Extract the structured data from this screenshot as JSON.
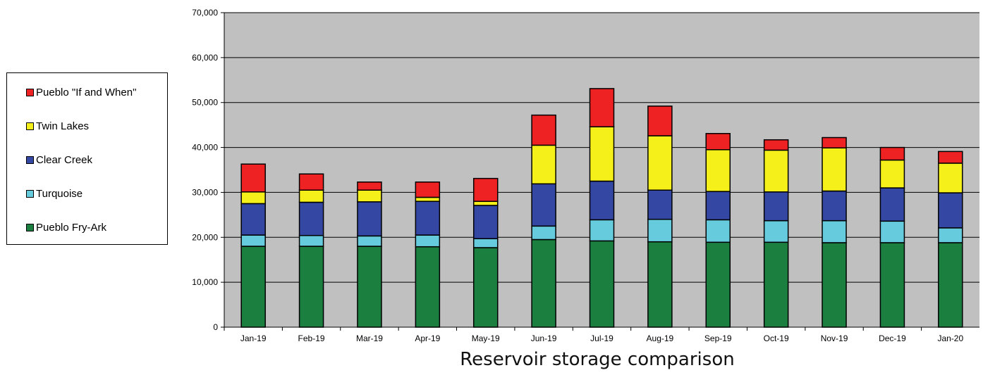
{
  "caption": "Reservoir storage comparison",
  "chart_data": {
    "type": "bar",
    "stacked": true,
    "categories": [
      "Jan-19",
      "Feb-19",
      "Mar-19",
      "Apr-19",
      "May-19",
      "Jun-19",
      "Jul-19",
      "Aug-19",
      "Sep-19",
      "Oct-19",
      "Nov-19",
      "Dec-19",
      "Jan-20"
    ],
    "ylim": [
      0,
      70000
    ],
    "yticks": [
      0,
      10000,
      20000,
      30000,
      40000,
      50000,
      60000,
      70000
    ],
    "ytick_labels": [
      "0",
      "10,000",
      "20,000",
      "30,000",
      "40,000",
      "50,000",
      "60,000",
      "70,000"
    ],
    "grid": true,
    "plot_background": "#c0c0c0",
    "legend_placement": "left",
    "series": [
      {
        "name": "Pueblo Fry-Ark",
        "color": "#1a7f3f",
        "values": [
          18000,
          18000,
          18000,
          17900,
          17700,
          19500,
          19200,
          19000,
          18900,
          18900,
          18800,
          18800,
          18800
        ]
      },
      {
        "name": "Turquoise",
        "color": "#66ccdd",
        "values": [
          2500,
          2400,
          2300,
          2600,
          2000,
          3000,
          4700,
          5000,
          5000,
          4800,
          4900,
          4800,
          3300
        ]
      },
      {
        "name": "Clear Creek",
        "color": "#3347a3",
        "values": [
          7000,
          7400,
          7600,
          7500,
          7400,
          9400,
          8600,
          6500,
          6300,
          6400,
          6600,
          7400,
          7800
        ]
      },
      {
        "name": "Twin Lakes",
        "color": "#f5ef1a",
        "values": [
          2600,
          2700,
          2600,
          900,
          900,
          8600,
          12100,
          12100,
          9300,
          9300,
          9600,
          6200,
          6600
        ]
      },
      {
        "name": "Pueblo \"If and When\"",
        "color": "#ee2222",
        "values": [
          6200,
          3600,
          1800,
          3400,
          5100,
          6700,
          8500,
          6600,
          3600,
          2300,
          2300,
          2800,
          2600
        ]
      }
    ]
  }
}
